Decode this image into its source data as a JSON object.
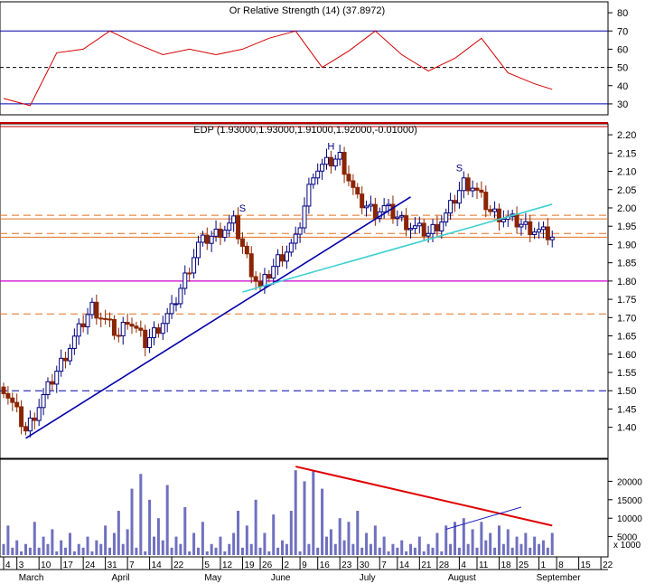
{
  "colors": {
    "background": "#ffffff",
    "frame": "#000000",
    "rsi_line": "#d40000",
    "band": "#0000aa",
    "up_candle": "#000080",
    "down_candle": "#8b2500",
    "trend_blue": "#0000aa",
    "trend_cyan": "#40d0d0",
    "resist_orange": "#e07020",
    "support_magenta": "#cc00cc",
    "dashed_red": "#e05020",
    "volume_bar": "#7070c0",
    "volume_trend_red": "#e00000",
    "volume_trend_blue": "#2020c0",
    "red_double_line": "#c00000"
  },
  "chart_data": [
    {
      "panel": "rsi",
      "type": "line",
      "title": "Or Relative Strength (14) (37.8972)",
      "ylim": [
        25,
        85
      ],
      "y_ticks": [
        30,
        40,
        50,
        60,
        70,
        80
      ],
      "reference_lines": [
        30,
        50,
        70
      ],
      "x_index": [
        0,
        6,
        12,
        18,
        24,
        30,
        36,
        42,
        48,
        54,
        60,
        66,
        72,
        78,
        84,
        90,
        96,
        102,
        108,
        114,
        120,
        124
      ],
      "values": [
        33,
        29,
        58,
        60,
        70,
        63,
        57,
        60,
        57,
        60,
        66,
        70,
        50,
        59,
        70,
        57,
        48,
        55,
        66,
        47,
        41,
        38
      ]
    },
    {
      "panel": "price",
      "type": "candlestick",
      "title": "EDP (1.93000,1.93000,1.91000,1.92000,-0.01000)",
      "ylim": [
        1.32,
        2.22
      ],
      "y_ticks": [
        "1.40",
        "1.45",
        "1.50",
        "1.55",
        "1.60",
        "1.65",
        "1.70",
        "1.75",
        "1.80",
        "1.85",
        "1.90",
        "1.95",
        "2.00",
        "2.05",
        "2.10",
        "2.15",
        "2.20"
      ],
      "close_path": {
        "x_index": [
          0,
          5,
          8,
          14,
          20,
          26,
          28,
          32,
          38,
          44,
          52,
          56,
          58,
          62,
          66,
          70,
          76,
          80,
          84,
          86,
          92,
          96,
          100,
          104,
          106,
          110,
          116,
          124
        ],
        "close": [
          1.51,
          1.39,
          1.46,
          1.6,
          1.73,
          1.65,
          1.7,
          1.63,
          1.72,
          1.9,
          1.96,
          1.83,
          1.78,
          1.86,
          1.91,
          2.1,
          2.14,
          2.02,
          1.99,
          2.0,
          1.95,
          1.93,
          1.98,
          2.07,
          2.06,
          1.99,
          1.96,
          1.92
        ]
      },
      "horizontal_lines": [
        {
          "y": 1.98,
          "style": "dashed",
          "color": "orange"
        },
        {
          "y": 1.97,
          "style": "solid",
          "color": "orange"
        },
        {
          "y": 1.93,
          "style": "dashed",
          "color": "orange"
        },
        {
          "y": 1.92,
          "style": "solid",
          "color": "orange"
        },
        {
          "y": 1.8,
          "style": "solid",
          "color": "magenta"
        },
        {
          "y": 1.71,
          "style": "dashed",
          "color": "orange"
        },
        {
          "y": 1.5,
          "style": "dashed",
          "color": "blue"
        }
      ],
      "trendlines": [
        {
          "from": [
            5,
            1.37
          ],
          "to": [
            92,
            2.03
          ],
          "color": "blue"
        },
        {
          "from": [
            54,
            1.77
          ],
          "to": [
            124,
            2.01
          ],
          "color": "cyan"
        }
      ],
      "annotations": [
        {
          "text": "S",
          "x": 54,
          "y": 1.99
        },
        {
          "text": "H",
          "x": 74,
          "y": 2.16
        },
        {
          "text": "S",
          "x": 103,
          "y": 2.1
        }
      ]
    },
    {
      "panel": "volume",
      "type": "bar",
      "title": "",
      "ylim": [
        0,
        25000
      ],
      "y_ticks": [
        5000,
        10000,
        15000,
        20000
      ],
      "y_tick_labels": [
        "5000",
        "10000",
        "15000",
        "20000"
      ],
      "unit_label": "x 1000",
      "values": [
        3000,
        8000,
        2000,
        4000,
        1000,
        3000,
        2000,
        9000,
        2000,
        5000,
        3000,
        7000,
        1000,
        4000,
        2000,
        6000,
        1000,
        3000,
        2000,
        5000,
        1000,
        4000,
        3000,
        8000,
        2000,
        6000,
        12000,
        3000,
        7000,
        18000,
        2000,
        22000,
        1000,
        15000,
        5000,
        10000,
        4000,
        19000,
        2000,
        5000,
        3000,
        13000,
        1000,
        6000,
        2000,
        9000,
        1000,
        3000,
        2000,
        5000,
        1000,
        3000,
        6000,
        12000,
        2000,
        8000,
        3000,
        15000,
        2000,
        6000,
        1000,
        11000,
        2000,
        4000,
        3000,
        12000,
        23000,
        1000,
        20000,
        3000,
        23000,
        2000,
        18000,
        5000,
        7000,
        3000,
        10000,
        4000,
        9000,
        3000,
        12000,
        2000,
        6000,
        3000,
        8000,
        2000,
        5000,
        1000,
        3000,
        2000,
        4000,
        1000,
        3000,
        2000,
        5000,
        1000,
        3000,
        2000,
        6000,
        1000,
        8000,
        3000,
        9000,
        2000,
        10000,
        3000,
        7000,
        2000,
        9000,
        4000,
        6000,
        2000,
        8000,
        3000,
        7000,
        2000,
        5000,
        3000,
        6000,
        2000,
        5000,
        3000,
        4000,
        2000,
        6000
      ],
      "trendlines": [
        {
          "from": [
            66,
            24000
          ],
          "to": [
            124,
            8000
          ],
          "color": "red"
        },
        {
          "from": [
            100,
            7000
          ],
          "to": [
            117,
            13000
          ],
          "color": "blue"
        }
      ]
    }
  ],
  "x_axis": {
    "day_ticks": [
      {
        "label": "4",
        "x": 0
      },
      {
        "label": "3",
        "x": 3
      },
      {
        "label": "10",
        "x": 8
      },
      {
        "label": "17",
        "x": 13
      },
      {
        "label": "24",
        "x": 18
      },
      {
        "label": "31",
        "x": 23
      },
      {
        "label": "7",
        "x": 28
      },
      {
        "label": "14",
        "x": 33
      },
      {
        "label": "22",
        "x": 38
      },
      {
        "label": "5",
        "x": 45
      },
      {
        "label": "12",
        "x": 49
      },
      {
        "label": "19",
        "x": 54
      },
      {
        "label": "26",
        "x": 58
      },
      {
        "label": "2",
        "x": 63
      },
      {
        "label": "9",
        "x": 67
      },
      {
        "label": "16",
        "x": 71
      },
      {
        "label": "23",
        "x": 76
      },
      {
        "label": "30",
        "x": 80
      },
      {
        "label": "7",
        "x": 85
      },
      {
        "label": "14",
        "x": 89
      },
      {
        "label": "21",
        "x": 94
      },
      {
        "label": "28",
        "x": 98
      },
      {
        "label": "4",
        "x": 103
      },
      {
        "label": "11",
        "x": 107
      },
      {
        "label": "18",
        "x": 112
      },
      {
        "label": "25",
        "x": 116
      },
      {
        "label": "1",
        "x": 121
      },
      {
        "label": "8",
        "x": 125
      },
      {
        "label": "15",
        "x": 130
      },
      {
        "label": "22",
        "x": 135
      }
    ],
    "month_labels": [
      {
        "label": "March",
        "x": 3
      },
      {
        "label": "April",
        "x": 24
      },
      {
        "label": "May",
        "x": 45
      },
      {
        "label": "June",
        "x": 60
      },
      {
        "label": "July",
        "x": 80
      },
      {
        "label": "August",
        "x": 100
      },
      {
        "label": "September",
        "x": 120
      }
    ],
    "x_max": 136
  }
}
